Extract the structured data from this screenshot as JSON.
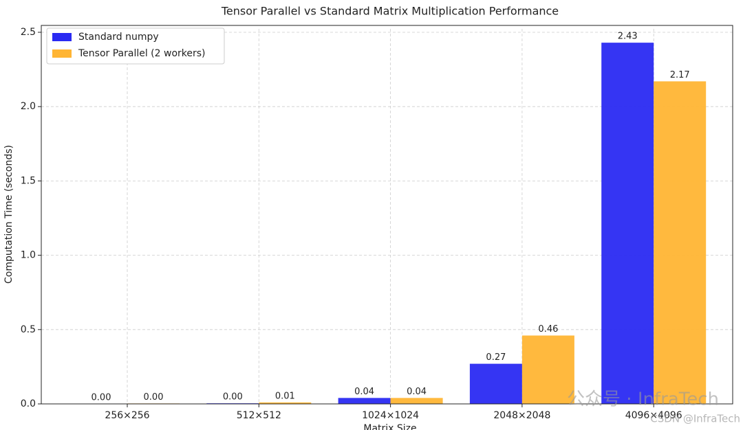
{
  "chart_data": {
    "type": "bar",
    "title": "Tensor Parallel vs Standard Matrix Multiplication Performance",
    "xlabel": "Matrix Size",
    "ylabel": "Computation Time (seconds)",
    "categories": [
      "256×256",
      "512×512",
      "1024×1024",
      "2048×2048",
      "4096×4096"
    ],
    "series": [
      {
        "name": "Standard numpy",
        "color": "#2a2af2",
        "values": [
          0.001,
          0.004,
          0.04,
          0.27,
          2.43
        ],
        "value_labels": [
          "0.00",
          "0.00",
          "0.04",
          "0.27",
          "2.43"
        ]
      },
      {
        "name": "Tensor Parallel (2 workers)",
        "color": "#ffb534",
        "values": [
          0.003,
          0.01,
          0.04,
          0.46,
          2.17
        ],
        "value_labels": [
          "0.00",
          "0.01",
          "0.04",
          "0.46",
          "2.17"
        ]
      }
    ],
    "ylim": [
      0,
      2.5
    ],
    "yticks": [
      {
        "value": 0,
        "label": "0.0"
      },
      0.5,
      {
        "value": 1,
        "label": "1.0"
      },
      1.5,
      {
        "value": 2,
        "label": "2.0"
      },
      2.5
    ],
    "grid": true,
    "legend": "upper left",
    "watermark": [
      "公众号 · InfraTech",
      "CSDN @InfraTech"
    ]
  }
}
